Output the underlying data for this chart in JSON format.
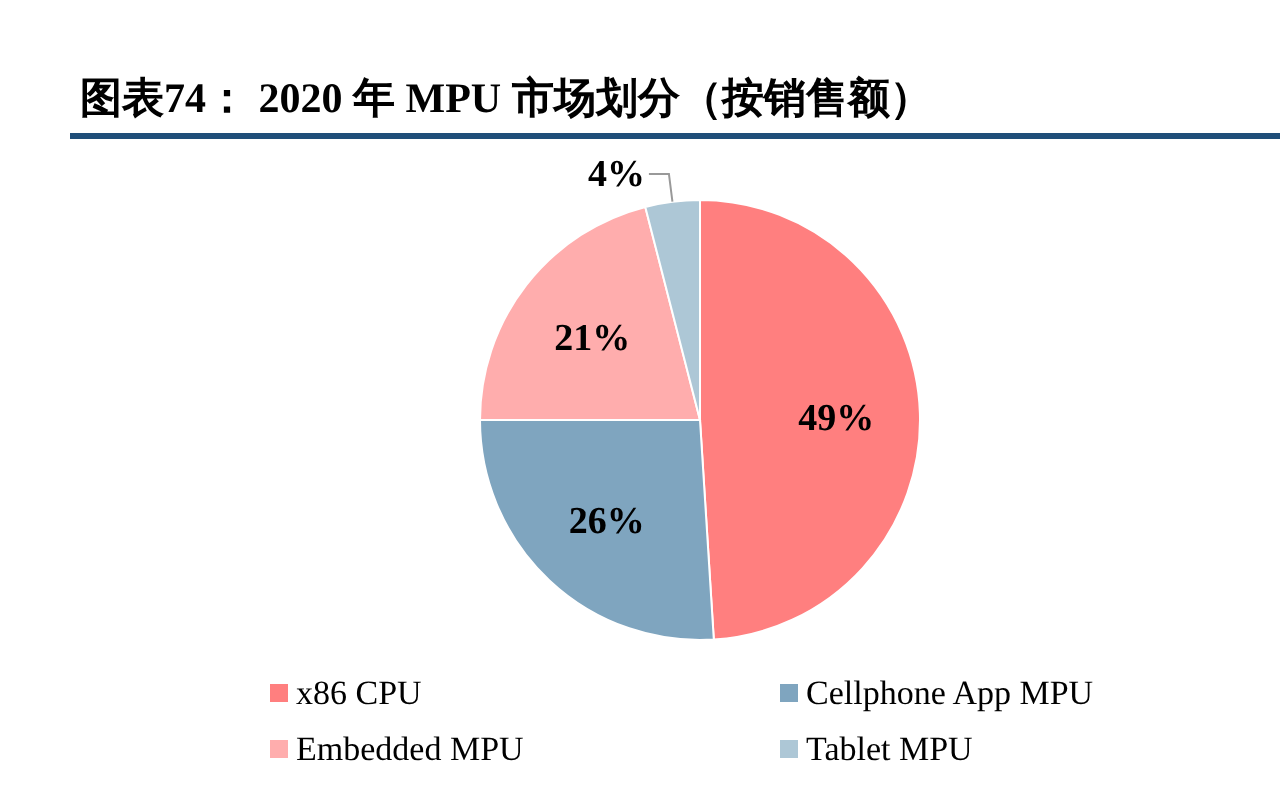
{
  "chart_data": {
    "type": "pie",
    "title": "图表74：  2020 年 MPU 市场划分（按销售额）",
    "categories": [
      "x86 CPU",
      "Cellphone App MPU",
      "Embedded MPU",
      "Tablet MPU"
    ],
    "values": [
      49,
      26,
      21,
      4
    ],
    "colors": [
      "#ff7f7f",
      "#7fa5bf",
      "#ffadad",
      "#adc7d6"
    ],
    "value_labels": [
      "49%",
      "26%",
      "21%",
      "4%"
    ],
    "legend": "bottom"
  }
}
